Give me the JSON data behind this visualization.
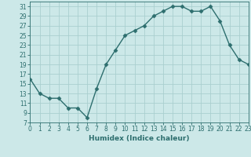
{
  "x": [
    0,
    1,
    2,
    3,
    4,
    5,
    6,
    7,
    8,
    9,
    10,
    11,
    12,
    13,
    14,
    15,
    16,
    17,
    18,
    19,
    20,
    21,
    22,
    23
  ],
  "y": [
    16,
    13,
    12,
    12,
    10,
    10,
    8,
    14,
    19,
    22,
    25,
    26,
    27,
    29,
    30,
    31,
    31,
    30,
    30,
    31,
    28,
    23,
    20,
    19
  ],
  "xlabel": "Humidex (Indice chaleur)",
  "ylabel": "",
  "bg_color": "#cce8e8",
  "line_color": "#2d6e6e",
  "grid_color": "#aacfcf",
  "xlim": [
    0,
    23
  ],
  "ylim": [
    7,
    32
  ],
  "yticks": [
    7,
    9,
    11,
    13,
    15,
    17,
    19,
    21,
    23,
    25,
    27,
    29,
    31
  ],
  "xticks": [
    0,
    1,
    2,
    3,
    4,
    5,
    6,
    7,
    8,
    9,
    10,
    11,
    12,
    13,
    14,
    15,
    16,
    17,
    18,
    19,
    20,
    21,
    22,
    23
  ]
}
